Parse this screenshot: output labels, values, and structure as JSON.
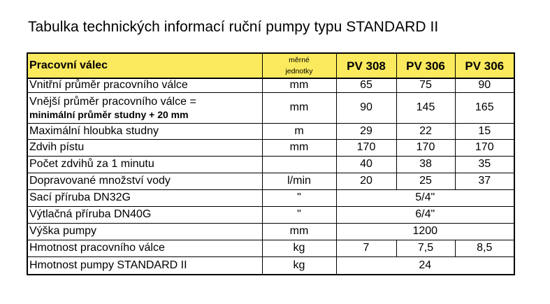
{
  "document": {
    "title": "Tabulka technických informací ruční pumpy typu STANDARD II"
  },
  "table": {
    "header": {
      "label": "Pracovní válec",
      "unit_line1": "měrné",
      "unit_line2": "jednotky",
      "models": [
        "PV 308",
        "PV 306",
        "PV 306"
      ]
    },
    "rows": [
      {
        "label": "Vnitřní průměr pracovního válce",
        "unit": "mm",
        "values": [
          "65",
          "75",
          "90"
        ]
      },
      {
        "label": "Vnější průměr pracovního válce =",
        "label_bold": "minimální průměr studny + 20 mm",
        "unit": "mm",
        "values": [
          "90",
          "145",
          "165"
        ]
      },
      {
        "label": "Maximální hloubka studny",
        "unit": "m",
        "values": [
          "29",
          "22",
          "15"
        ]
      },
      {
        "label": "Zdvih pístu",
        "unit": "mm",
        "values": [
          "170",
          "170",
          "170"
        ]
      },
      {
        "label": "Počet zdvihů za 1 minutu",
        "unit": "",
        "values": [
          "40",
          "38",
          "35"
        ]
      },
      {
        "label": "Dopravované množství vody",
        "unit": "l/min",
        "values": [
          "20",
          "25",
          "37"
        ]
      },
      {
        "label": "Sací příruba DN32G",
        "unit": "\"",
        "merged_value": "5/4\""
      },
      {
        "label": "Výtlačná příruba DN40G",
        "unit": "\"",
        "merged_value": "6/4\""
      },
      {
        "label": "Výška pumpy",
        "unit": "mm",
        "merged_value": "1200"
      },
      {
        "label": "Hmotnost pracovního válce",
        "unit": "kg",
        "values": [
          "7",
          "7,5",
          "8,5"
        ]
      },
      {
        "label": "Hmotnost pumpy STANDARD II",
        "unit": "kg",
        "merged_value": "24"
      }
    ]
  },
  "colors": {
    "header_background": "#fbea5d",
    "border": "#000000"
  }
}
